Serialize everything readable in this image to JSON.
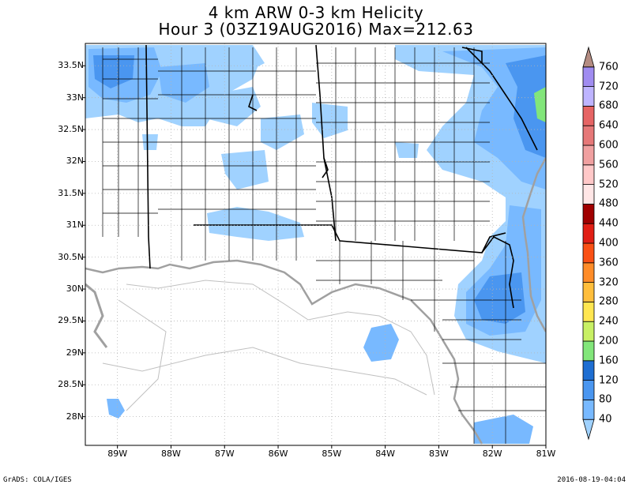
{
  "title": {
    "line1": "4 km ARW 0-3 km Helicity",
    "line2": "Hour 3 (03Z19AUG2016) Max=212.63"
  },
  "map": {
    "lat_labels": [
      "33.5N",
      "33N",
      "32.5N",
      "32N",
      "31.5N",
      "31N",
      "30.5N",
      "30N",
      "29.5N",
      "29N",
      "28.5N",
      "28N"
    ],
    "lon_labels": [
      "89W",
      "88W",
      "87W",
      "86W",
      "85W",
      "84W",
      "83W",
      "82W",
      "81W"
    ],
    "lat_values": [
      33.5,
      33,
      32.5,
      32,
      31.5,
      31,
      30.5,
      30,
      29.5,
      29,
      28.5,
      28
    ],
    "lon_values": [
      -89,
      -88,
      -87,
      -86,
      -85,
      -84,
      -83,
      -82,
      -81
    ]
  },
  "colorbar": {
    "levels": [
      "40",
      "80",
      "120",
      "160",
      "200",
      "240",
      "280",
      "320",
      "360",
      "400",
      "440",
      "480",
      "520",
      "560",
      "600",
      "640",
      "680",
      "720",
      "760"
    ],
    "colors": [
      "#a0d2ff",
      "#78b9ff",
      "#4a96f0",
      "#1e6ed2",
      "#82e67a",
      "#c8f064",
      "#ffe650",
      "#ffbe3c",
      "#ff8c28",
      "#fa5014",
      "#e11e14",
      "#a00000",
      "#ffe6e6",
      "#ffc8c8",
      "#f0a0a0",
      "#e67878",
      "#e66464",
      "#beb4ff",
      "#a08cf0",
      "#7864dc",
      "#5a3cc8",
      "#b48c82"
    ]
  },
  "colors": {
    "county_line": "#000000",
    "state_line": "#000000",
    "coast": "#a0a0a0",
    "grid": "#c8c8c8"
  },
  "footer": {
    "left": "GrADS: COLA/IGES",
    "right": "2016-08-19-04:04"
  }
}
